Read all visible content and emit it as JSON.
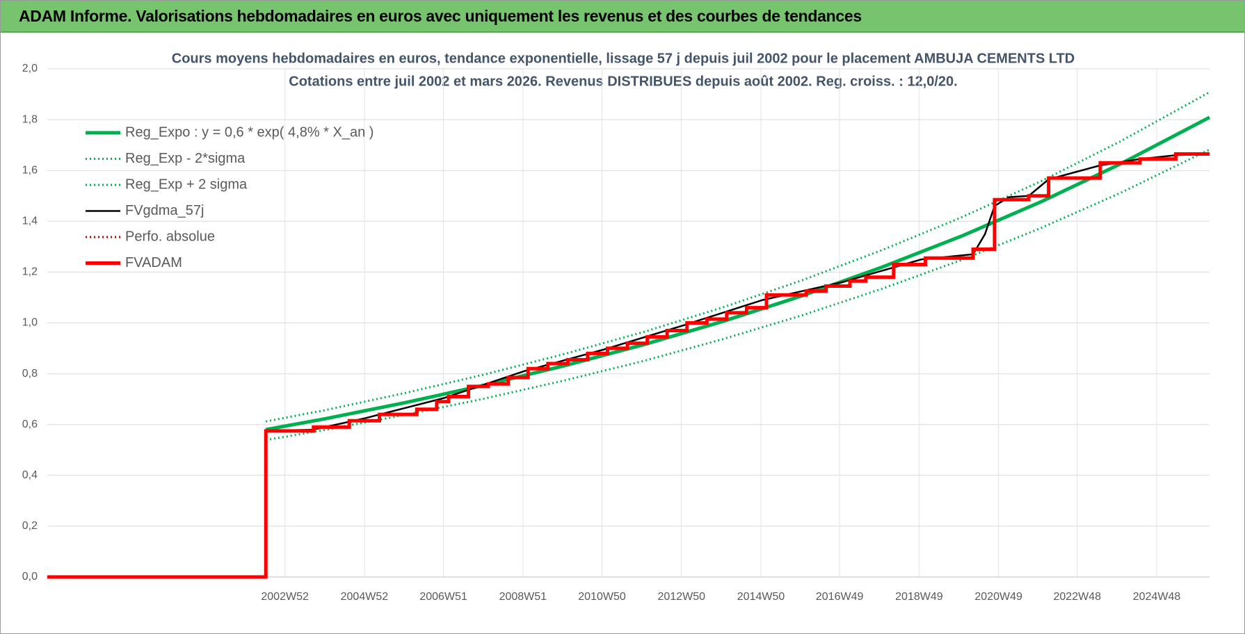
{
  "header": {
    "title": "ADAM Informe. Valorisations hebdomadaires en euros avec uniquement les revenus et des courbes de tendances"
  },
  "chart_data": {
    "type": "line",
    "title": "Cours moyens hebdomadaires en euros, tendance exponentielle, lissage 57 j depuis juil 2002 pour le placement AMBUJA CEMENTS LTD",
    "subtitle": "Cotations entre juil 2002 et mars 2026. Revenus DISTRIBUES depuis août 2002. Reg. croiss. : 12,0/20.",
    "xlim": [
      1997.0,
      2026.25
    ],
    "xticks": [
      {
        "value": 2002.98,
        "label": "2002W52"
      },
      {
        "value": 2004.98,
        "label": "2004W52"
      },
      {
        "value": 2006.97,
        "label": "2006W51"
      },
      {
        "value": 2008.97,
        "label": "2008W51"
      },
      {
        "value": 2010.96,
        "label": "2010W50"
      },
      {
        "value": 2012.96,
        "label": "2012W50"
      },
      {
        "value": 2014.96,
        "label": "2014W50"
      },
      {
        "value": 2016.94,
        "label": "2016W49"
      },
      {
        "value": 2018.94,
        "label": "2018W49"
      },
      {
        "value": 2020.94,
        "label": "2020W49"
      },
      {
        "value": 2022.92,
        "label": "2022W48"
      },
      {
        "value": 2024.92,
        "label": "2024W48"
      }
    ],
    "ylim": [
      0,
      2
    ],
    "yticks": [
      {
        "value": 0,
        "label": "0,0"
      },
      {
        "value": 0.2,
        "label": "0,2"
      },
      {
        "value": 0.4,
        "label": "0,4"
      },
      {
        "value": 0.6,
        "label": "0,6"
      },
      {
        "value": 0.8,
        "label": "0,8"
      },
      {
        "value": 1,
        "label": "1,0"
      },
      {
        "value": 1.2,
        "label": "1,2"
      },
      {
        "value": 1.4,
        "label": "1,4"
      },
      {
        "value": 1.6,
        "label": "1,6"
      },
      {
        "value": 1.8,
        "label": "1,8"
      },
      {
        "value": 2,
        "label": "2,0"
      }
    ],
    "grid": true,
    "legend": "upper-left",
    "series": [
      {
        "name": "Reg_Expo : y = 0,6 * exp( 4,8% *  X_an )",
        "color": "#00b050",
        "style": "solid",
        "x": [
          2002.5,
          2004,
          2006,
          2008,
          2010,
          2012,
          2014,
          2016,
          2018,
          2020,
          2022,
          2024,
          2026.25
        ],
        "values": [
          0.58,
          0.623,
          0.686,
          0.755,
          0.831,
          0.914,
          1.006,
          1.107,
          1.219,
          1.341,
          1.476,
          1.625,
          1.809
        ]
      },
      {
        "name": "Reg_Exp - 2*sigma",
        "color": "#00b050",
        "style": "dotted",
        "x": [
          2002.5,
          2004,
          2006,
          2008,
          2010,
          2012,
          2014,
          2016,
          2018,
          2020,
          2022,
          2024,
          2026.25
        ],
        "values": [
          0.539,
          0.579,
          0.638,
          0.702,
          0.773,
          0.85,
          0.936,
          1.03,
          1.134,
          1.247,
          1.373,
          1.511,
          1.682
        ]
      },
      {
        "name": "Reg_Exp + 2 sigma",
        "color": "#00b050",
        "style": "dotted",
        "x": [
          2002.5,
          2004,
          2006,
          2008,
          2010,
          2012,
          2014,
          2016,
          2018,
          2020,
          2022,
          2024,
          2026.25
        ],
        "values": [
          0.612,
          0.657,
          0.724,
          0.797,
          0.877,
          0.964,
          1.061,
          1.168,
          1.286,
          1.415,
          1.557,
          1.714,
          1.908
        ]
      },
      {
        "name": "FVgdma_57j",
        "color": "#000000",
        "style": "solid",
        "x": [
          1997.0,
          2002.5,
          2002.52,
          2003.7,
          2005,
          2007,
          2009,
          2011,
          2013,
          2015,
          2017,
          2019,
          2020.3,
          2020.6,
          2020.84,
          2021.2,
          2021.7,
          2022.2,
          2023.5,
          2024.5,
          2025.4,
          2026.25
        ],
        "values": [
          0,
          0,
          0.575,
          0.58,
          0.625,
          0.705,
          0.81,
          0.895,
          0.99,
          1.09,
          1.16,
          1.25,
          1.27,
          1.35,
          1.46,
          1.495,
          1.5,
          1.565,
          1.62,
          1.645,
          1.66,
          1.665
        ]
      },
      {
        "name": "Perfo. absolue",
        "color": "#c00000",
        "style": "dotted",
        "x": [
          1997.0,
          2002.5,
          2002.5,
          2003.7,
          2003.7,
          2004.6,
          2004.6,
          2005.36,
          2005.36,
          2006.3,
          2006.3,
          2006.8,
          2006.8,
          2007.1,
          2007.1,
          2007.6,
          2007.6,
          2008.1,
          2008.1,
          2008.6,
          2008.6,
          2009.1,
          2009.1,
          2009.6,
          2009.6,
          2010.1,
          2010.1,
          2010.6,
          2010.6,
          2011.1,
          2011.1,
          2011.6,
          2011.6,
          2012.1,
          2012.1,
          2012.6,
          2012.6,
          2013.1,
          2013.1,
          2013.6,
          2013.6,
          2014.1,
          2014.1,
          2014.6,
          2014.6,
          2015.1,
          2015.1,
          2016.1,
          2016.1,
          2016.6,
          2016.6,
          2017.2,
          2017.2,
          2017.6,
          2017.6,
          2018.3,
          2018.3,
          2019.1,
          2019.1,
          2020.3,
          2020.3,
          2020.84,
          2020.84,
          2021.7,
          2021.7,
          2022.2,
          2022.2,
          2023.5,
          2023.5,
          2024.5,
          2024.5,
          2025.4,
          2025.4,
          2026.25
        ],
        "values": [
          0,
          0,
          0.575,
          0.575,
          0.59,
          0.59,
          0.615,
          0.615,
          0.64,
          0.64,
          0.66,
          0.66,
          0.69,
          0.69,
          0.71,
          0.71,
          0.75,
          0.75,
          0.76,
          0.76,
          0.785,
          0.785,
          0.82,
          0.82,
          0.84,
          0.84,
          0.855,
          0.855,
          0.88,
          0.88,
          0.9,
          0.9,
          0.92,
          0.92,
          0.945,
          0.945,
          0.97,
          0.97,
          1.0,
          1.0,
          1.015,
          1.015,
          1.04,
          1.04,
          1.06,
          1.06,
          1.11,
          1.11,
          1.125,
          1.125,
          1.145,
          1.145,
          1.165,
          1.165,
          1.18,
          1.18,
          1.23,
          1.23,
          1.255,
          1.255,
          1.29,
          1.29,
          1.485,
          1.485,
          1.5,
          1.5,
          1.57,
          1.57,
          1.63,
          1.63,
          1.645,
          1.645,
          1.665,
          1.665
        ]
      },
      {
        "name": "FVADAM",
        "color": "#ff0000",
        "style": "solid",
        "x": [
          1997.0,
          2002.5,
          2002.5,
          2003.7,
          2003.7,
          2004.6,
          2004.6,
          2005.36,
          2005.36,
          2006.3,
          2006.3,
          2006.8,
          2006.8,
          2007.1,
          2007.1,
          2007.6,
          2007.6,
          2008.1,
          2008.1,
          2008.6,
          2008.6,
          2009.1,
          2009.1,
          2009.6,
          2009.6,
          2010.1,
          2010.1,
          2010.6,
          2010.6,
          2011.1,
          2011.1,
          2011.6,
          2011.6,
          2012.1,
          2012.1,
          2012.6,
          2012.6,
          2013.1,
          2013.1,
          2013.6,
          2013.6,
          2014.1,
          2014.1,
          2014.6,
          2014.6,
          2015.1,
          2015.1,
          2016.1,
          2016.1,
          2016.6,
          2016.6,
          2017.2,
          2017.2,
          2017.6,
          2017.6,
          2018.3,
          2018.3,
          2019.1,
          2019.1,
          2020.3,
          2020.3,
          2020.84,
          2020.84,
          2021.7,
          2021.7,
          2022.2,
          2022.2,
          2023.5,
          2023.5,
          2024.5,
          2024.5,
          2025.4,
          2025.4,
          2026.25
        ],
        "values": [
          0,
          0,
          0.575,
          0.575,
          0.59,
          0.59,
          0.615,
          0.615,
          0.64,
          0.64,
          0.66,
          0.66,
          0.69,
          0.69,
          0.71,
          0.71,
          0.75,
          0.75,
          0.76,
          0.76,
          0.785,
          0.785,
          0.82,
          0.82,
          0.84,
          0.84,
          0.855,
          0.855,
          0.88,
          0.88,
          0.9,
          0.9,
          0.92,
          0.92,
          0.945,
          0.945,
          0.97,
          0.97,
          1.0,
          1.0,
          1.015,
          1.015,
          1.04,
          1.04,
          1.06,
          1.06,
          1.11,
          1.11,
          1.125,
          1.125,
          1.145,
          1.145,
          1.165,
          1.165,
          1.18,
          1.18,
          1.23,
          1.23,
          1.255,
          1.255,
          1.29,
          1.29,
          1.485,
          1.485,
          1.5,
          1.5,
          1.57,
          1.57,
          1.63,
          1.63,
          1.645,
          1.645,
          1.665,
          1.665
        ]
      }
    ]
  }
}
